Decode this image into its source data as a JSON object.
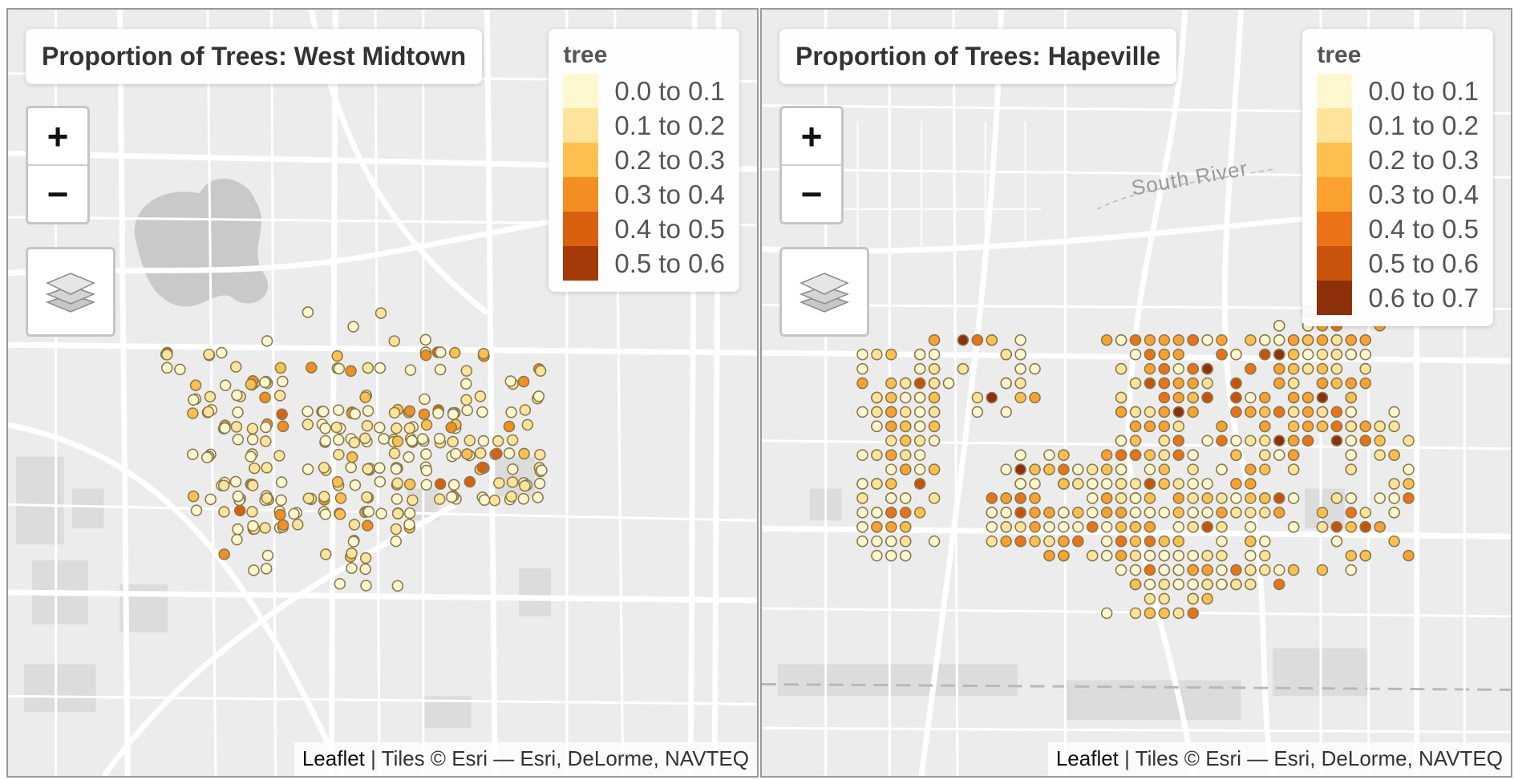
{
  "maps": {
    "left": {
      "title": "Proportion of Trees: West Midtown",
      "zoom_in": "+",
      "zoom_out": "−",
      "legend": {
        "title": "tree",
        "items": [
          {
            "label": "0.0 to 0.1",
            "color": "#FFF7D0"
          },
          {
            "label": "0.1 to 0.2",
            "color": "#FEE49A"
          },
          {
            "label": "0.2 to 0.3",
            "color": "#FDC04F"
          },
          {
            "label": "0.3 to 0.4",
            "color": "#F38E23"
          },
          {
            "label": "0.4 to 0.5",
            "color": "#D9600F"
          },
          {
            "label": "0.5 to 0.6",
            "color": "#A33A07"
          }
        ]
      },
      "attribution": {
        "leaflet": "Leaflet",
        "rest": " | Tiles © Esri — Esri, DeLorme, NAVTEQ"
      }
    },
    "right": {
      "title": "Proportion of Trees: Hapeville",
      "zoom_in": "+",
      "zoom_out": "−",
      "river_label": "South River",
      "legend": {
        "title": "tree",
        "items": [
          {
            "label": "0.0 to 0.1",
            "color": "#FFF7D0"
          },
          {
            "label": "0.1 to 0.2",
            "color": "#FEE49A"
          },
          {
            "label": "0.2 to 0.3",
            "color": "#FDC04F"
          },
          {
            "label": "0.3 to 0.4",
            "color": "#FBA130"
          },
          {
            "label": "0.4 to 0.5",
            "color": "#EB7317"
          },
          {
            "label": "0.5 to 0.6",
            "color": "#C8530A"
          },
          {
            "label": "0.6 to 0.7",
            "color": "#8E300A"
          }
        ]
      },
      "attribution": {
        "leaflet": "Leaflet",
        "rest": " | Tiles © Esri — Esri, DeLorme, NAVTEQ"
      }
    }
  },
  "colors": {
    "map_background": "#ECECEC",
    "road": "#FFFFFF",
    "water": "#C9C9CB",
    "marker_stroke": "#8A7A50"
  }
}
